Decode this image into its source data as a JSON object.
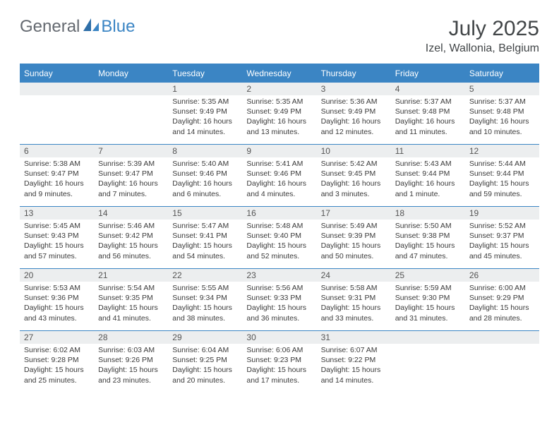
{
  "brand": {
    "part1": "General",
    "part2": "Blue"
  },
  "title": "July 2025",
  "location": "Izel, Wallonia, Belgium",
  "colors": {
    "accent": "#3b85c4",
    "header_text": "#646970",
    "numrow_bg": "#eceeef",
    "body_text": "#3a3a3a",
    "title_text": "#424648"
  },
  "weekdays": [
    "Sunday",
    "Monday",
    "Tuesday",
    "Wednesday",
    "Thursday",
    "Friday",
    "Saturday"
  ],
  "leading_blanks": 2,
  "days": [
    {
      "n": "1",
      "sunrise": "Sunrise: 5:35 AM",
      "sunset": "Sunset: 9:49 PM",
      "daylight": "Daylight: 16 hours and 14 minutes."
    },
    {
      "n": "2",
      "sunrise": "Sunrise: 5:35 AM",
      "sunset": "Sunset: 9:49 PM",
      "daylight": "Daylight: 16 hours and 13 minutes."
    },
    {
      "n": "3",
      "sunrise": "Sunrise: 5:36 AM",
      "sunset": "Sunset: 9:49 PM",
      "daylight": "Daylight: 16 hours and 12 minutes."
    },
    {
      "n": "4",
      "sunrise": "Sunrise: 5:37 AM",
      "sunset": "Sunset: 9:48 PM",
      "daylight": "Daylight: 16 hours and 11 minutes."
    },
    {
      "n": "5",
      "sunrise": "Sunrise: 5:37 AM",
      "sunset": "Sunset: 9:48 PM",
      "daylight": "Daylight: 16 hours and 10 minutes."
    },
    {
      "n": "6",
      "sunrise": "Sunrise: 5:38 AM",
      "sunset": "Sunset: 9:47 PM",
      "daylight": "Daylight: 16 hours and 9 minutes."
    },
    {
      "n": "7",
      "sunrise": "Sunrise: 5:39 AM",
      "sunset": "Sunset: 9:47 PM",
      "daylight": "Daylight: 16 hours and 7 minutes."
    },
    {
      "n": "8",
      "sunrise": "Sunrise: 5:40 AM",
      "sunset": "Sunset: 9:46 PM",
      "daylight": "Daylight: 16 hours and 6 minutes."
    },
    {
      "n": "9",
      "sunrise": "Sunrise: 5:41 AM",
      "sunset": "Sunset: 9:46 PM",
      "daylight": "Daylight: 16 hours and 4 minutes."
    },
    {
      "n": "10",
      "sunrise": "Sunrise: 5:42 AM",
      "sunset": "Sunset: 9:45 PM",
      "daylight": "Daylight: 16 hours and 3 minutes."
    },
    {
      "n": "11",
      "sunrise": "Sunrise: 5:43 AM",
      "sunset": "Sunset: 9:44 PM",
      "daylight": "Daylight: 16 hours and 1 minute."
    },
    {
      "n": "12",
      "sunrise": "Sunrise: 5:44 AM",
      "sunset": "Sunset: 9:44 PM",
      "daylight": "Daylight: 15 hours and 59 minutes."
    },
    {
      "n": "13",
      "sunrise": "Sunrise: 5:45 AM",
      "sunset": "Sunset: 9:43 PM",
      "daylight": "Daylight: 15 hours and 57 minutes."
    },
    {
      "n": "14",
      "sunrise": "Sunrise: 5:46 AM",
      "sunset": "Sunset: 9:42 PM",
      "daylight": "Daylight: 15 hours and 56 minutes."
    },
    {
      "n": "15",
      "sunrise": "Sunrise: 5:47 AM",
      "sunset": "Sunset: 9:41 PM",
      "daylight": "Daylight: 15 hours and 54 minutes."
    },
    {
      "n": "16",
      "sunrise": "Sunrise: 5:48 AM",
      "sunset": "Sunset: 9:40 PM",
      "daylight": "Daylight: 15 hours and 52 minutes."
    },
    {
      "n": "17",
      "sunrise": "Sunrise: 5:49 AM",
      "sunset": "Sunset: 9:39 PM",
      "daylight": "Daylight: 15 hours and 50 minutes."
    },
    {
      "n": "18",
      "sunrise": "Sunrise: 5:50 AM",
      "sunset": "Sunset: 9:38 PM",
      "daylight": "Daylight: 15 hours and 47 minutes."
    },
    {
      "n": "19",
      "sunrise": "Sunrise: 5:52 AM",
      "sunset": "Sunset: 9:37 PM",
      "daylight": "Daylight: 15 hours and 45 minutes."
    },
    {
      "n": "20",
      "sunrise": "Sunrise: 5:53 AM",
      "sunset": "Sunset: 9:36 PM",
      "daylight": "Daylight: 15 hours and 43 minutes."
    },
    {
      "n": "21",
      "sunrise": "Sunrise: 5:54 AM",
      "sunset": "Sunset: 9:35 PM",
      "daylight": "Daylight: 15 hours and 41 minutes."
    },
    {
      "n": "22",
      "sunrise": "Sunrise: 5:55 AM",
      "sunset": "Sunset: 9:34 PM",
      "daylight": "Daylight: 15 hours and 38 minutes."
    },
    {
      "n": "23",
      "sunrise": "Sunrise: 5:56 AM",
      "sunset": "Sunset: 9:33 PM",
      "daylight": "Daylight: 15 hours and 36 minutes."
    },
    {
      "n": "24",
      "sunrise": "Sunrise: 5:58 AM",
      "sunset": "Sunset: 9:31 PM",
      "daylight": "Daylight: 15 hours and 33 minutes."
    },
    {
      "n": "25",
      "sunrise": "Sunrise: 5:59 AM",
      "sunset": "Sunset: 9:30 PM",
      "daylight": "Daylight: 15 hours and 31 minutes."
    },
    {
      "n": "26",
      "sunrise": "Sunrise: 6:00 AM",
      "sunset": "Sunset: 9:29 PM",
      "daylight": "Daylight: 15 hours and 28 minutes."
    },
    {
      "n": "27",
      "sunrise": "Sunrise: 6:02 AM",
      "sunset": "Sunset: 9:28 PM",
      "daylight": "Daylight: 15 hours and 25 minutes."
    },
    {
      "n": "28",
      "sunrise": "Sunrise: 6:03 AM",
      "sunset": "Sunset: 9:26 PM",
      "daylight": "Daylight: 15 hours and 23 minutes."
    },
    {
      "n": "29",
      "sunrise": "Sunrise: 6:04 AM",
      "sunset": "Sunset: 9:25 PM",
      "daylight": "Daylight: 15 hours and 20 minutes."
    },
    {
      "n": "30",
      "sunrise": "Sunrise: 6:06 AM",
      "sunset": "Sunset: 9:23 PM",
      "daylight": "Daylight: 15 hours and 17 minutes."
    },
    {
      "n": "31",
      "sunrise": "Sunrise: 6:07 AM",
      "sunset": "Sunset: 9:22 PM",
      "daylight": "Daylight: 15 hours and 14 minutes."
    }
  ]
}
